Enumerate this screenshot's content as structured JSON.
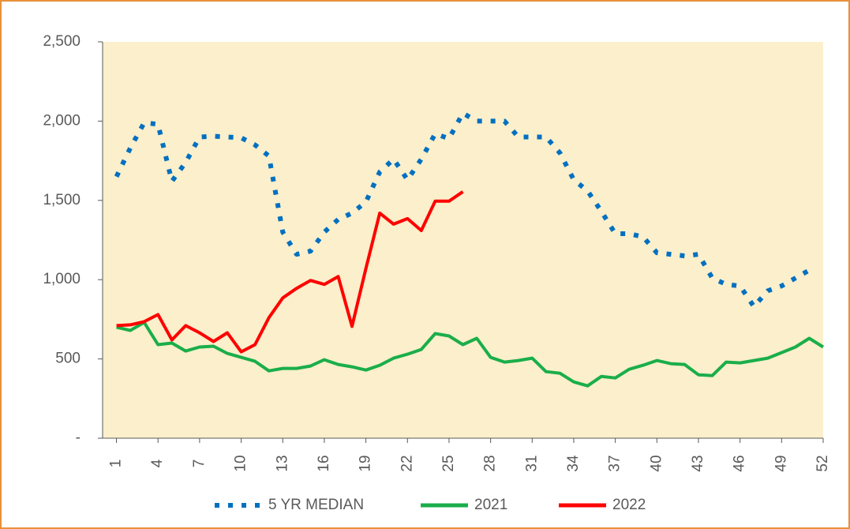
{
  "chart_data": {
    "type": "line",
    "x": [
      1,
      2,
      3,
      4,
      5,
      6,
      7,
      8,
      9,
      10,
      11,
      12,
      13,
      14,
      15,
      16,
      17,
      18,
      19,
      20,
      21,
      22,
      23,
      24,
      25,
      26,
      27,
      28,
      29,
      30,
      31,
      32,
      33,
      34,
      35,
      36,
      37,
      38,
      39,
      40,
      41,
      42,
      43,
      44,
      45,
      46,
      47,
      48,
      49,
      50,
      51,
      52
    ],
    "xlim": [
      0,
      52
    ],
    "xticks": [
      1,
      4,
      7,
      10,
      13,
      16,
      19,
      22,
      25,
      28,
      31,
      34,
      37,
      40,
      43,
      46,
      49,
      52
    ],
    "ylim": [
      0,
      2500
    ],
    "yticks": [
      {
        "value": 0,
        "label": "-"
      },
      500,
      {
        "value": 1000,
        "label": "1,000"
      },
      {
        "value": 1500,
        "label": "1,500"
      },
      {
        "value": 2000,
        "label": "2,000"
      },
      {
        "value": 2500,
        "label": "2,500"
      }
    ],
    "legend": "bottom",
    "series": [
      {
        "name": "5 YR MEDIAN",
        "color": "#0070c0",
        "style": "dotted",
        "values": [
          1650,
          1830,
          1990,
          1980,
          1620,
          1740,
          1900,
          1905,
          1900,
          1895,
          1850,
          1780,
          1300,
          1160,
          1180,
          1300,
          1380,
          1420,
          1490,
          1680,
          1760,
          1630,
          1760,
          1920,
          1890,
          2050,
          2000,
          2000,
          2000,
          1900,
          1900,
          1900,
          1800,
          1630,
          1560,
          1430,
          1290,
          1290,
          1270,
          1170,
          1160,
          1150,
          1160,
          1010,
          970,
          960,
          830,
          930,
          960,
          1010,
          1060,
          null
        ]
      },
      {
        "name": "2021",
        "color": "#1aae4a",
        "style": "solid",
        "values": [
          700,
          680,
          730,
          590,
          600,
          550,
          575,
          580,
          535,
          510,
          485,
          425,
          440,
          440,
          455,
          495,
          465,
          450,
          430,
          460,
          505,
          530,
          560,
          660,
          645,
          590,
          630,
          510,
          480,
          490,
          505,
          420,
          410,
          355,
          330,
          390,
          380,
          435,
          460,
          490,
          470,
          465,
          400,
          395,
          480,
          475,
          490,
          505,
          540,
          575,
          630,
          575
        ]
      },
      {
        "name": "2022",
        "color": "#ff0000",
        "style": "solid",
        "values": [
          710,
          715,
          735,
          780,
          620,
          710,
          665,
          610,
          665,
          545,
          590,
          760,
          885,
          945,
          995,
          970,
          1020,
          705,
          1070,
          1420,
          1350,
          1385,
          1310,
          1495,
          1495,
          1555,
          null,
          null,
          null,
          null,
          null,
          null,
          null,
          null,
          null,
          null,
          null,
          null,
          null,
          null,
          null,
          null,
          null,
          null,
          null,
          null,
          null,
          null,
          null,
          null,
          null,
          null
        ]
      }
    ]
  }
}
